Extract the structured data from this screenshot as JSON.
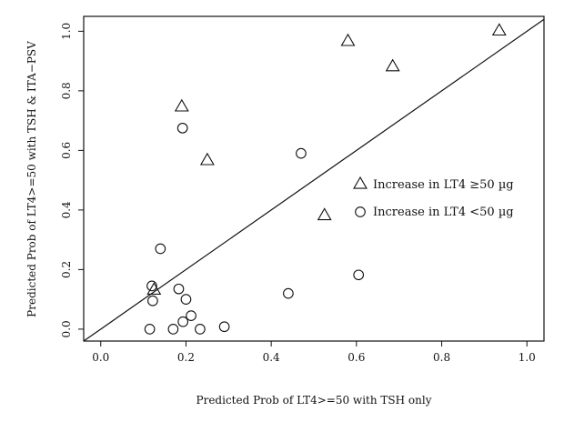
{
  "chart_data": {
    "type": "scatter",
    "xlabel": "Predicted Prob of LT4>=50 with TSH only",
    "ylabel": "Predicted Prob of LT4>=50 with TSH & ITA−PSV",
    "xlim": [
      -0.04,
      1.04
    ],
    "ylim": [
      -0.04,
      1.05
    ],
    "xticks": [
      0.0,
      0.2,
      0.4,
      0.6,
      0.8,
      1.0
    ],
    "xtick_labels": [
      "0.0",
      "0.2",
      "0.4",
      "0.6",
      "0.8",
      "1.0"
    ],
    "yticks": [
      0.0,
      0.2,
      0.4,
      0.6,
      0.8,
      1.0
    ],
    "ytick_labels": [
      "0.0",
      "0.2",
      "0.4",
      "0.6",
      "0.8",
      "1.0"
    ],
    "grid": false,
    "legend_position": "right",
    "reference_line": {
      "from": [
        -0.04,
        -0.04
      ],
      "to": [
        1.04,
        1.04
      ]
    },
    "series": [
      {
        "name": "Increase in LT4 ≥50 µg",
        "marker": "triangle",
        "points": [
          {
            "x": 0.125,
            "y": 0.13
          },
          {
            "x": 0.19,
            "y": 0.745
          },
          {
            "x": 0.25,
            "y": 0.565
          },
          {
            "x": 0.525,
            "y": 0.38
          },
          {
            "x": 0.58,
            "y": 0.965
          },
          {
            "x": 0.685,
            "y": 0.88
          },
          {
            "x": 0.935,
            "y": 1.0
          }
        ]
      },
      {
        "name": "Increase in LT4 <50 µg",
        "marker": "circle",
        "points": [
          {
            "x": 0.115,
            "y": 0.0
          },
          {
            "x": 0.12,
            "y": 0.145
          },
          {
            "x": 0.122,
            "y": 0.095
          },
          {
            "x": 0.14,
            "y": 0.27
          },
          {
            "x": 0.17,
            "y": 0.0
          },
          {
            "x": 0.183,
            "y": 0.135
          },
          {
            "x": 0.193,
            "y": 0.025
          },
          {
            "x": 0.192,
            "y": 0.675
          },
          {
            "x": 0.2,
            "y": 0.1
          },
          {
            "x": 0.212,
            "y": 0.045
          },
          {
            "x": 0.233,
            "y": 0.0
          },
          {
            "x": 0.29,
            "y": 0.008
          },
          {
            "x": 0.44,
            "y": 0.12
          },
          {
            "x": 0.47,
            "y": 0.59
          },
          {
            "x": 0.605,
            "y": 0.182
          }
        ]
      }
    ]
  }
}
